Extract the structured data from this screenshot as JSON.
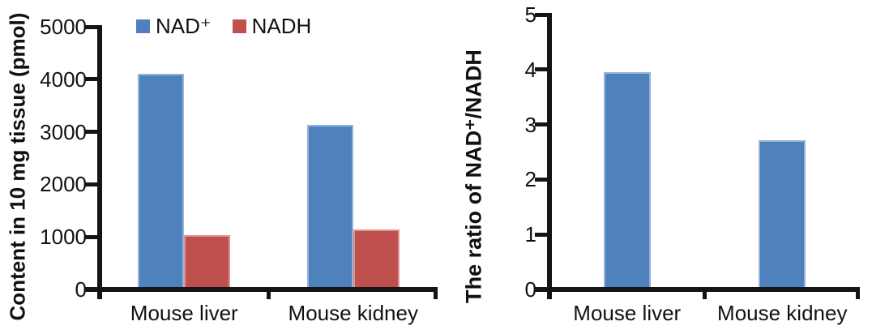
{
  "figure": {
    "background": "#ffffff",
    "axis_color": "#141414",
    "text_color": "#111111"
  },
  "chart_data": [
    {
      "id": "content",
      "type": "bar",
      "title": "",
      "ylabel": "Content in 10 mg tissue (pmol)",
      "xlabel": "",
      "categories": [
        "Mouse liver",
        "Mouse kidney"
      ],
      "series": [
        {
          "name": "NAD⁺",
          "color": "#4F81BD",
          "border_color": "#95B3D7",
          "values": [
            4100,
            3130
          ]
        },
        {
          "name": "NADH",
          "color": "#C0504D",
          "border_color": "#D99694",
          "values": [
            1030,
            1140
          ]
        }
      ],
      "ylim": [
        0,
        5000
      ],
      "yticks": [
        "0",
        "1000",
        "2000",
        "3000",
        "4000",
        "5000"
      ],
      "grid": false,
      "legend_position": "top-left"
    },
    {
      "id": "ratio",
      "type": "bar",
      "title": "",
      "ylabel": "The ratio of NAD⁺/NADH",
      "xlabel": "",
      "categories": [
        "Mouse liver",
        "Mouse kidney"
      ],
      "series": [
        {
          "name": "NAD⁺/NADH",
          "color": "#4F81BD",
          "border_color": "#95B3D7",
          "values": [
            3.95,
            2.72
          ]
        }
      ],
      "ylim": [
        0,
        5
      ],
      "yticks": [
        "0",
        "1",
        "2",
        "3",
        "4",
        "5"
      ],
      "grid": false,
      "legend_position": "none"
    }
  ]
}
